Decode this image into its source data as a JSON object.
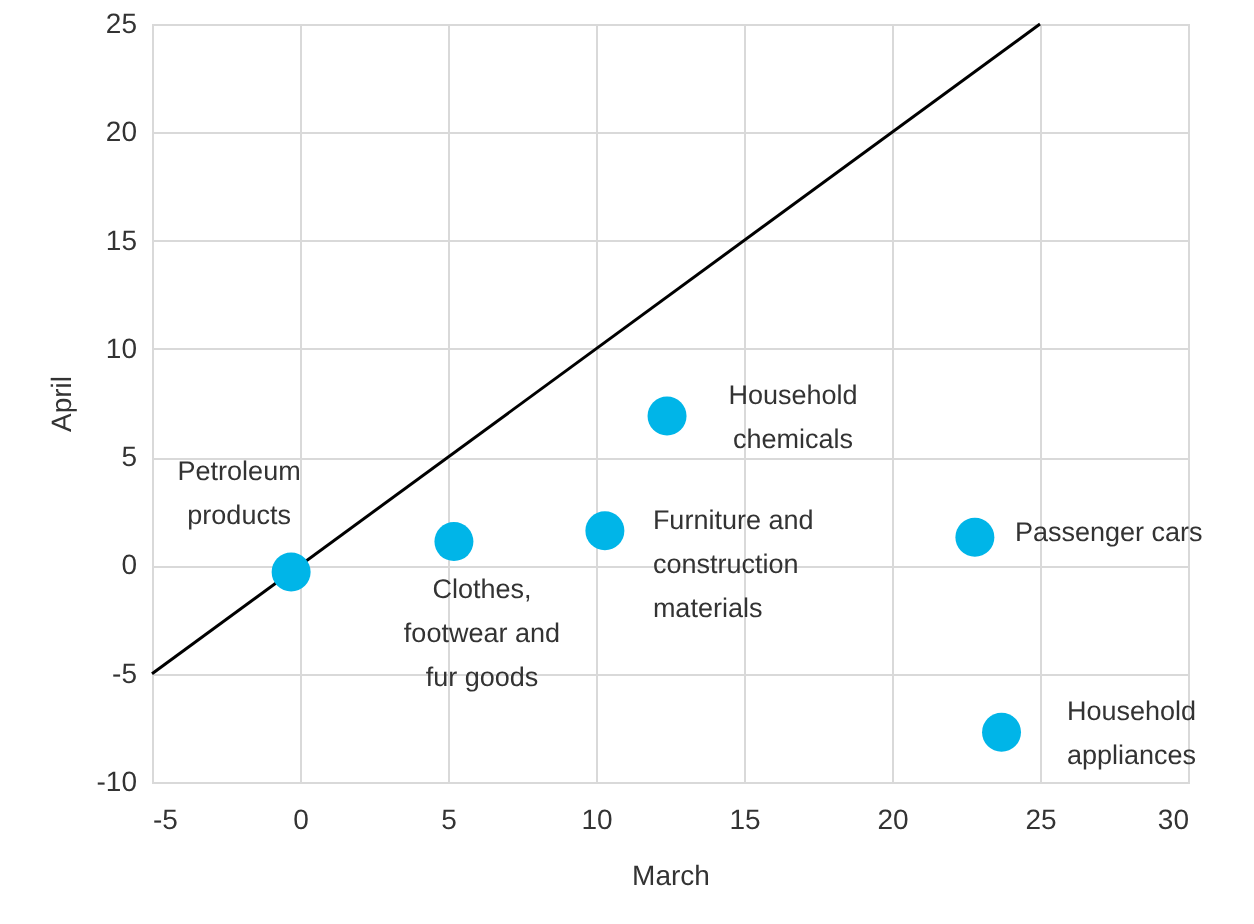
{
  "chart_data": {
    "type": "scatter",
    "xlabel": "March",
    "ylabel": "April",
    "xlim": [
      -5,
      30
    ],
    "xticks": [
      -5,
      0,
      5,
      10,
      15,
      20,
      25,
      30
    ],
    "ylim": [
      -10,
      25
    ],
    "yticks": [
      -10,
      -5,
      0,
      5,
      10,
      15,
      20,
      25
    ],
    "grid": true,
    "marker": "circle",
    "series": [
      {
        "type": "line",
        "color": "#000000",
        "marker": "none",
        "x": [
          -5,
          25
        ],
        "values": [
          -5,
          25
        ]
      },
      {
        "type": "scatter",
        "color": "#00b5e8",
        "x": [
          -0.3,
          5.2,
          10.3,
          12.4,
          22.8,
          23.7
        ],
        "values": [
          -0.3,
          1.1,
          1.6,
          6.9,
          1.3,
          -7.7
        ]
      }
    ],
    "annotations": [
      {
        "text": "Petroleum\nproducts",
        "x": -0.3,
        "y": -0.3
      },
      {
        "text": "Clothes,\nfootwear and\nfur goods",
        "x": 5.2,
        "y": 1.1
      },
      {
        "text": "Furniture and\nconstruction\nmaterials",
        "x": 10.3,
        "y": 1.6
      },
      {
        "text": "Household\nchemicals",
        "x": 12.4,
        "y": 6.9
      },
      {
        "text": "Passenger cars",
        "x": 22.8,
        "y": 1.3
      },
      {
        "text": "Household\nappliances",
        "x": 23.7,
        "y": -7.7
      }
    ]
  }
}
